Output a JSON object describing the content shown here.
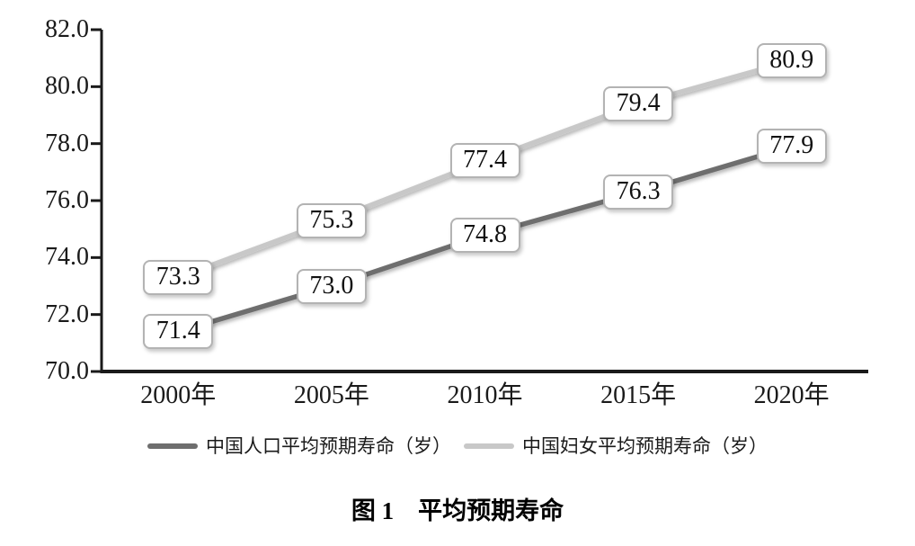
{
  "chart_data": {
    "type": "line",
    "categories": [
      "2000年",
      "2005年",
      "2010年",
      "2015年",
      "2020年"
    ],
    "series": [
      {
        "name": "中国人口平均预期寿命（岁）",
        "values": [
          71.4,
          73.0,
          74.8,
          76.3,
          77.9
        ],
        "color": "#6e6e6e"
      },
      {
        "name": "中国妇女平均预期寿命（岁）",
        "values": [
          73.3,
          75.3,
          77.4,
          79.4,
          80.9
        ],
        "color": "#c8c8c8"
      }
    ],
    "ylim": [
      70,
      82
    ],
    "ytick_step": 2,
    "ytick_labels": [
      "70.0",
      "72.0",
      "74.0",
      "76.0",
      "78.0",
      "80.0",
      "82.0"
    ],
    "xlabel": "",
    "ylabel": "",
    "grid": false,
    "legend_position": "bottom",
    "data_labels_format": "one-decimal",
    "axis_color": "#1a1a1a"
  },
  "caption": {
    "text": "图 1　平均预期寿命"
  }
}
